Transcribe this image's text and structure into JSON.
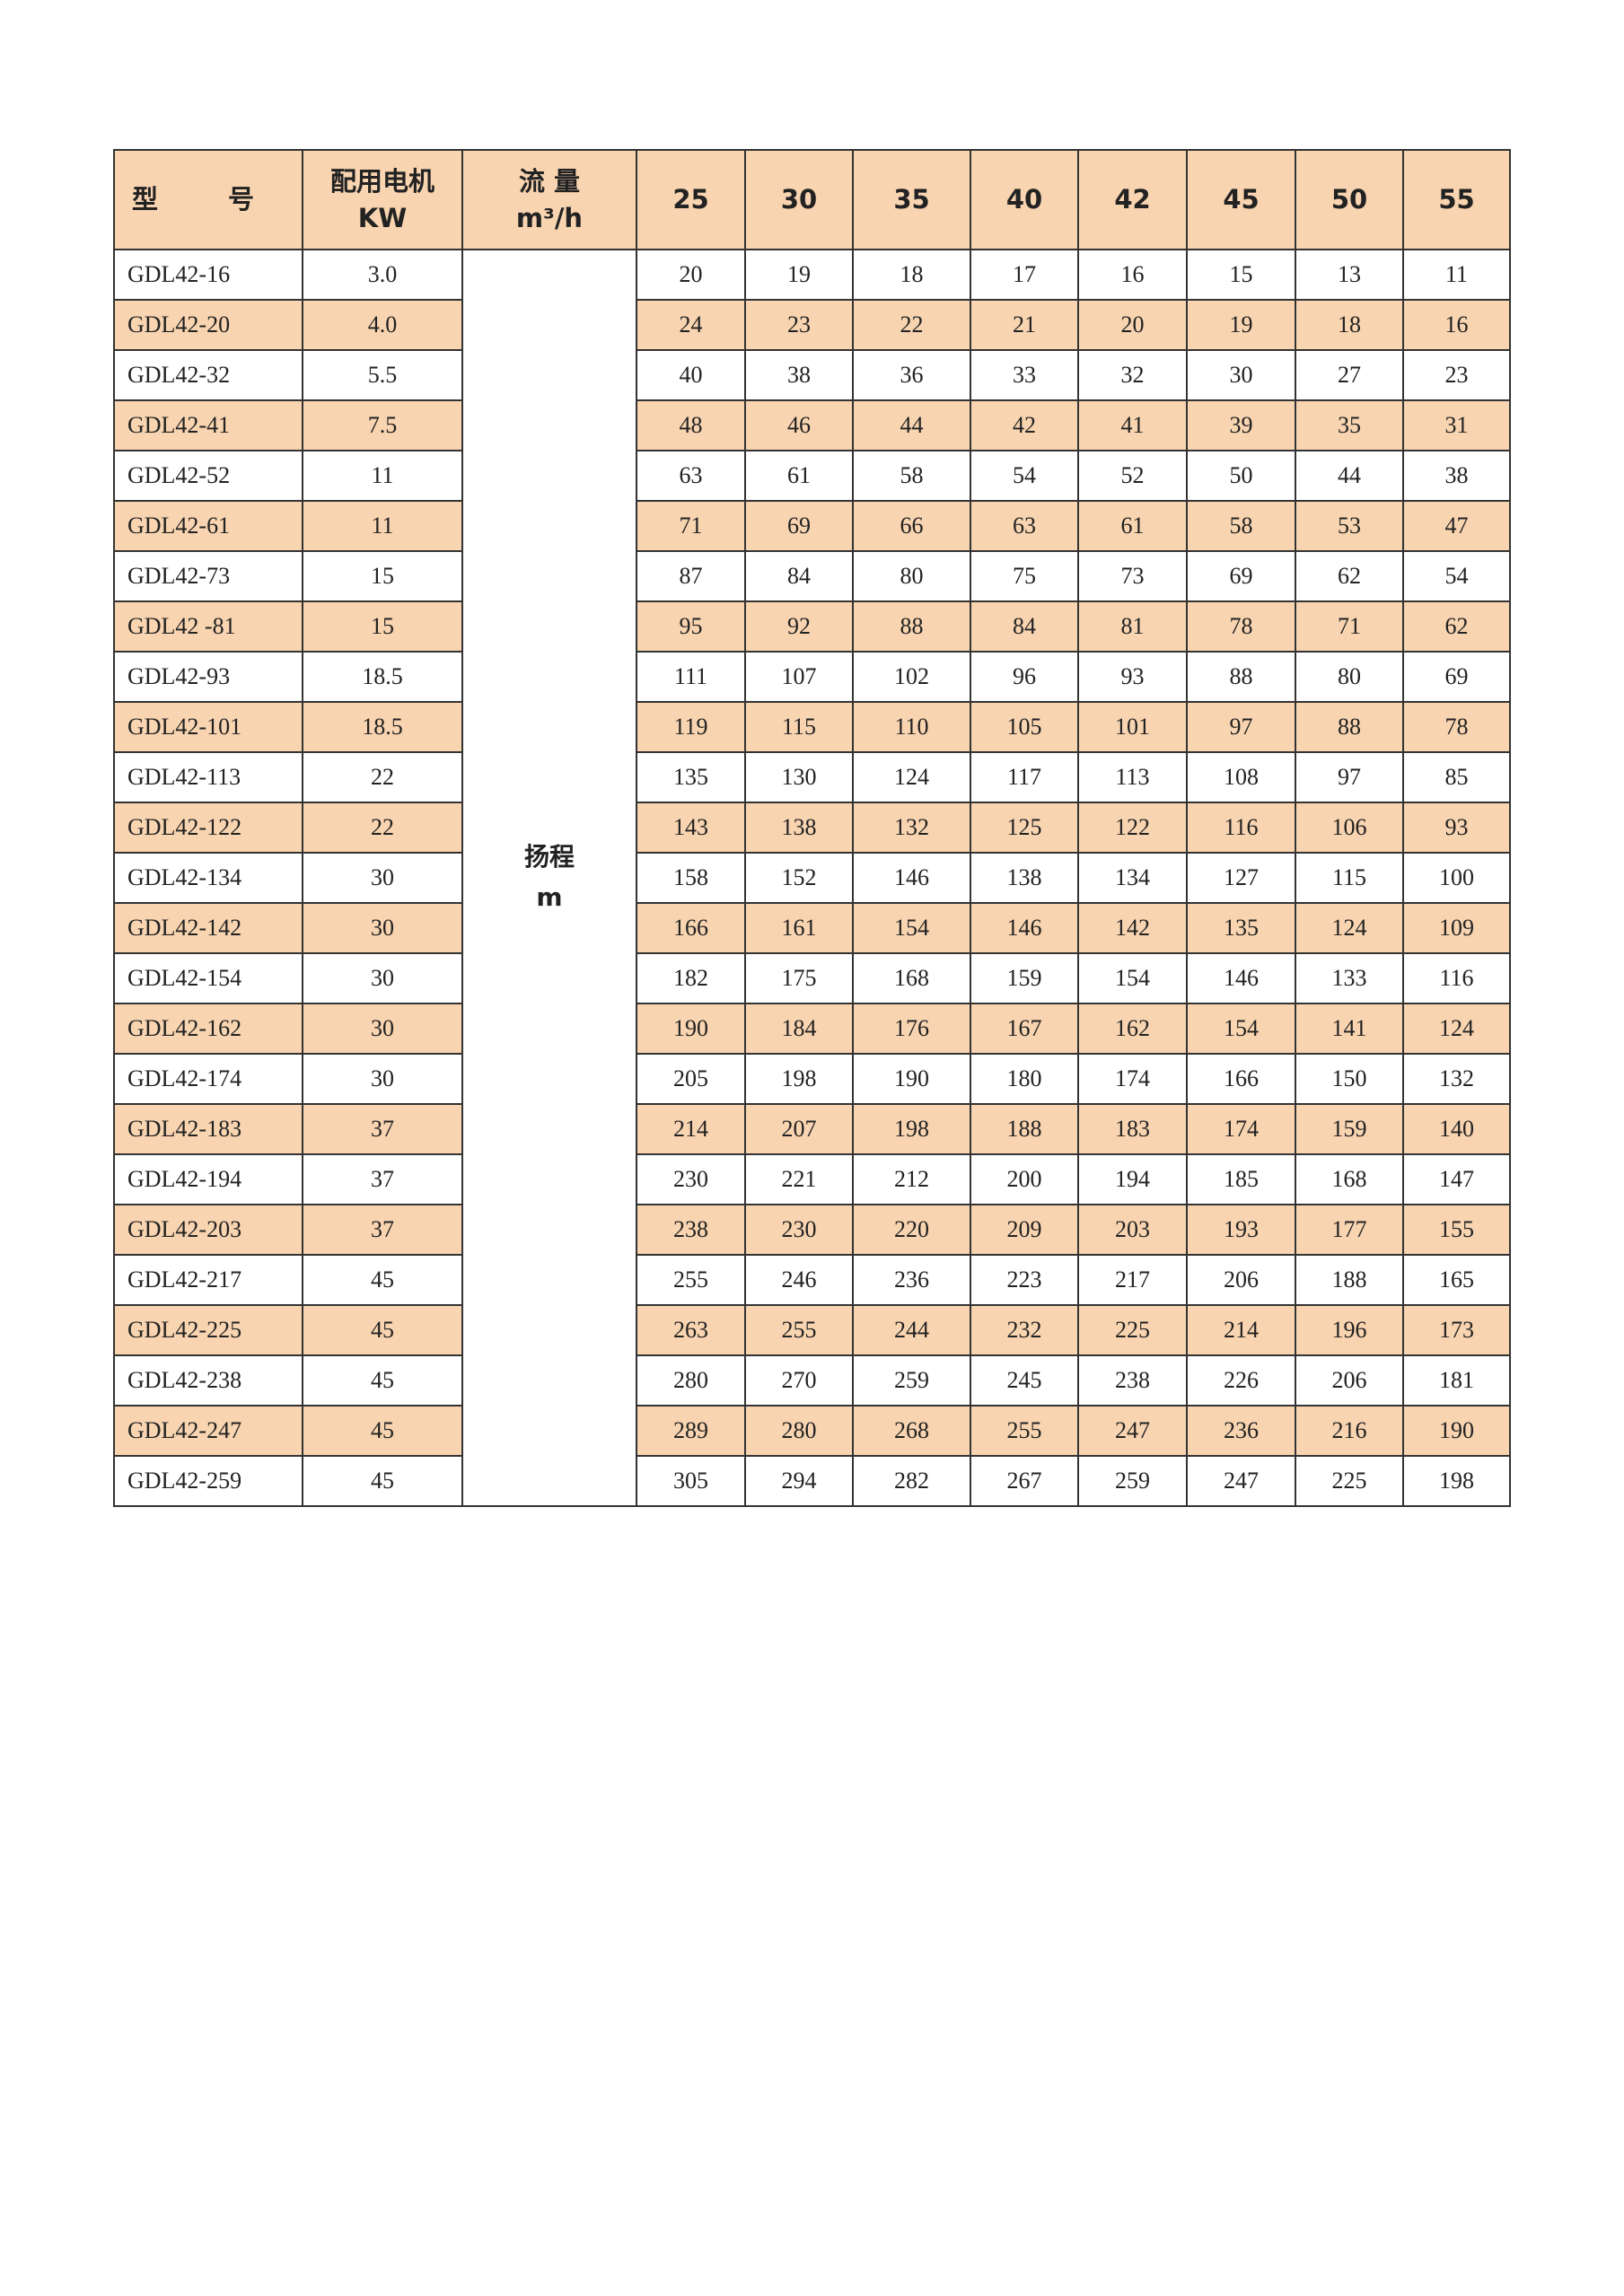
{
  "header": {
    "model": "型 号",
    "motor": "配用电机",
    "motor_unit": "KW",
    "flow": "流 量",
    "flow_unit": "m³/h",
    "flows": [
      "25",
      "30",
      "35",
      "40",
      "42",
      "45",
      "50",
      "55"
    ]
  },
  "head_label": "扬程",
  "head_unit": "m",
  "highlight_color": "#f8d4b0",
  "rows": [
    {
      "model": "GDL42-16",
      "kw": "3.0",
      "h": [
        "20",
        "19",
        "18",
        "17",
        "16",
        "15",
        "13",
        "11"
      ]
    },
    {
      "model": "GDL42-20",
      "kw": "4.0",
      "h": [
        "24",
        "23",
        "22",
        "21",
        "20",
        "19",
        "18",
        "16"
      ]
    },
    {
      "model": "GDL42-32",
      "kw": "5.5",
      "h": [
        "40",
        "38",
        "36",
        "33",
        "32",
        "30",
        "27",
        "23"
      ]
    },
    {
      "model": "GDL42-41",
      "kw": "7.5",
      "h": [
        "48",
        "46",
        "44",
        "42",
        "41",
        "39",
        "35",
        "31"
      ]
    },
    {
      "model": "GDL42-52",
      "kw": "11",
      "h": [
        "63",
        "61",
        "58",
        "54",
        "52",
        "50",
        "44",
        "38"
      ]
    },
    {
      "model": "GDL42-61",
      "kw": "11",
      "h": [
        "71",
        "69",
        "66",
        "63",
        "61",
        "58",
        "53",
        "47"
      ]
    },
    {
      "model": "GDL42-73",
      "kw": "15",
      "h": [
        "87",
        "84",
        "80",
        "75",
        "73",
        "69",
        "62",
        "54"
      ]
    },
    {
      "model": "GDL42 -81",
      "kw": "15",
      "h": [
        "95",
        "92",
        "88",
        "84",
        "81",
        "78",
        "71",
        "62"
      ]
    },
    {
      "model": "GDL42-93",
      "kw": "18.5",
      "h": [
        "111",
        "107",
        "102",
        "96",
        "93",
        "88",
        "80",
        "69"
      ]
    },
    {
      "model": "GDL42-101",
      "kw": "18.5",
      "h": [
        "119",
        "115",
        "110",
        "105",
        "101",
        "97",
        "88",
        "78"
      ]
    },
    {
      "model": "GDL42-113",
      "kw": "22",
      "h": [
        "135",
        "130",
        "124",
        "117",
        "113",
        "108",
        "97",
        "85"
      ]
    },
    {
      "model": "GDL42-122",
      "kw": "22",
      "h": [
        "143",
        "138",
        "132",
        "125",
        "122",
        "116",
        "106",
        "93"
      ]
    },
    {
      "model": "GDL42-134",
      "kw": "30",
      "h": [
        "158",
        "152",
        "146",
        "138",
        "134",
        "127",
        "115",
        "100"
      ]
    },
    {
      "model": "GDL42-142",
      "kw": "30",
      "h": [
        "166",
        "161",
        "154",
        "146",
        "142",
        "135",
        "124",
        "109"
      ]
    },
    {
      "model": "GDL42-154",
      "kw": "30",
      "h": [
        "182",
        "175",
        "168",
        "159",
        "154",
        "146",
        "133",
        "116"
      ]
    },
    {
      "model": "GDL42-162",
      "kw": "30",
      "h": [
        "190",
        "184",
        "176",
        "167",
        "162",
        "154",
        "141",
        "124"
      ]
    },
    {
      "model": "GDL42-174",
      "kw": "30",
      "h": [
        "205",
        "198",
        "190",
        "180",
        "174",
        "166",
        "150",
        "132"
      ]
    },
    {
      "model": "GDL42-183",
      "kw": "37",
      "h": [
        "214",
        "207",
        "198",
        "188",
        "183",
        "174",
        "159",
        "140"
      ]
    },
    {
      "model": "GDL42-194",
      "kw": "37",
      "h": [
        "230",
        "221",
        "212",
        "200",
        "194",
        "185",
        "168",
        "147"
      ]
    },
    {
      "model": "GDL42-203",
      "kw": "37",
      "h": [
        "238",
        "230",
        "220",
        "209",
        "203",
        "193",
        "177",
        "155"
      ]
    },
    {
      "model": "GDL42-217",
      "kw": "45",
      "h": [
        "255",
        "246",
        "236",
        "223",
        "217",
        "206",
        "188",
        "165"
      ]
    },
    {
      "model": "GDL42-225",
      "kw": "45",
      "h": [
        "263",
        "255",
        "244",
        "232",
        "225",
        "214",
        "196",
        "173"
      ]
    },
    {
      "model": "GDL42-238",
      "kw": "45",
      "h": [
        "280",
        "270",
        "259",
        "245",
        "238",
        "226",
        "206",
        "181"
      ]
    },
    {
      "model": "GDL42-247",
      "kw": "45",
      "h": [
        "289",
        "280",
        "268",
        "255",
        "247",
        "236",
        "216",
        "190"
      ]
    },
    {
      "model": "GDL42-259",
      "kw": "45",
      "h": [
        "305",
        "294",
        "282",
        "267",
        "259",
        "247",
        "225",
        "198"
      ]
    }
  ]
}
